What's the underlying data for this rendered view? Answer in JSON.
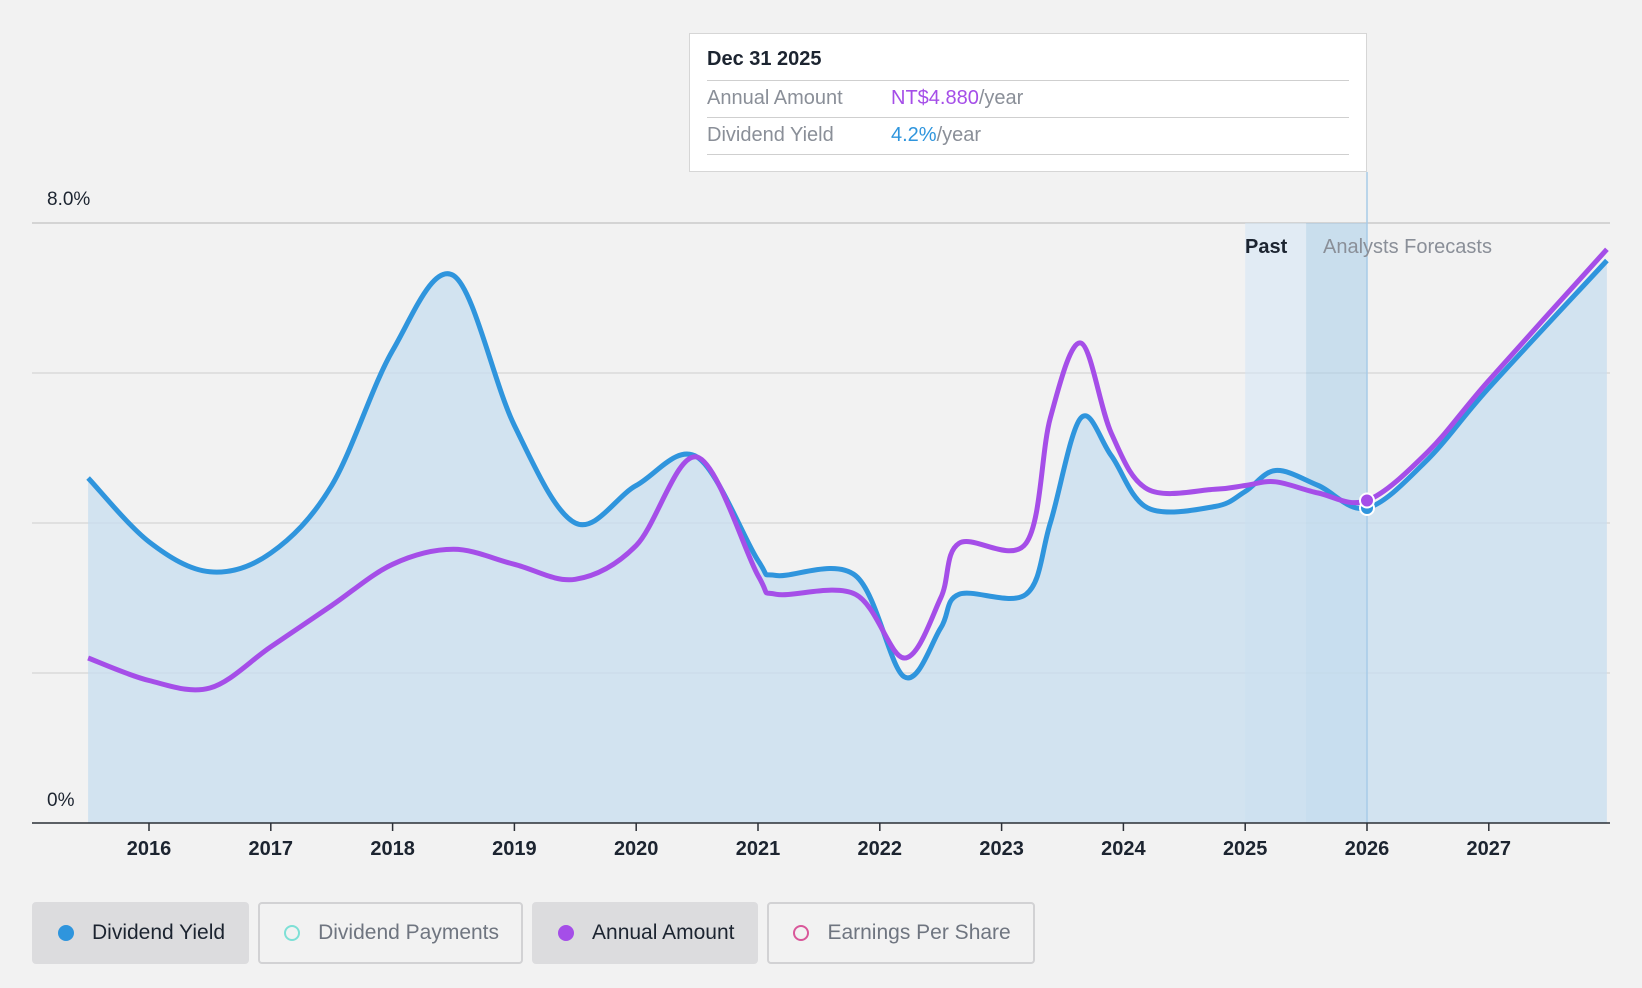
{
  "colors": {
    "dividend_yield": "#2f95dd",
    "annual_amount": "#a54ee8",
    "dividend_payments": "#7ee0d6",
    "earnings_per_share": "#d9579a",
    "area_fill": "#c7ddef",
    "background": "#f2f2f2"
  },
  "tooltip": {
    "date": "Dec 31 2025",
    "rows": [
      {
        "label": "Annual Amount",
        "value": "NT$4.880",
        "unit": "/year"
      },
      {
        "label": "Dividend Yield",
        "value": "4.2%",
        "unit": "/year"
      }
    ]
  },
  "regions": {
    "past_label": "Past",
    "forecast_label": "Analysts Forecasts"
  },
  "legend": [
    {
      "label": "Dividend Yield",
      "icon": "filled-dot-icon",
      "active": true
    },
    {
      "label": "Dividend Payments",
      "icon": "hollow-dot-icon",
      "active": false
    },
    {
      "label": "Annual Amount",
      "icon": "filled-dot-icon",
      "active": true
    },
    {
      "label": "Earnings Per Share",
      "icon": "hollow-dot-icon",
      "active": false
    }
  ],
  "chart_data": {
    "type": "line",
    "y_axis": {
      "min": 0,
      "max": 8,
      "unit": "%",
      "tick_labels": [
        "0%",
        "8.0%"
      ],
      "gridlines": [
        0,
        2,
        4,
        6,
        8
      ]
    },
    "x_axis": {
      "min": 2015.5,
      "max": 2027.97,
      "tick_labels": [
        "2016",
        "2017",
        "2018",
        "2019",
        "2020",
        "2021",
        "2022",
        "2023",
        "2024",
        "2025",
        "2026",
        "2027"
      ]
    },
    "past_region": [
      2025.0,
      2025.5
    ],
    "forecast_region": [
      2025.5,
      2026.0
    ],
    "selected_date": 2026.0,
    "grid": true,
    "series": [
      {
        "name": "Dividend Yield",
        "points": [
          [
            2015.5,
            4.6
          ],
          [
            2016.0,
            3.75
          ],
          [
            2016.5,
            3.35
          ],
          [
            2017.0,
            3.6
          ],
          [
            2017.5,
            4.5
          ],
          [
            2018.0,
            6.3
          ],
          [
            2018.5,
            7.3
          ],
          [
            2019.0,
            5.3
          ],
          [
            2019.5,
            4.0
          ],
          [
            2020.0,
            4.5
          ],
          [
            2020.5,
            4.88
          ],
          [
            2021.0,
            3.5
          ],
          [
            2021.15,
            3.3
          ],
          [
            2021.8,
            3.3
          ],
          [
            2022.2,
            1.95
          ],
          [
            2022.5,
            2.6
          ],
          [
            2022.65,
            3.05
          ],
          [
            2023.2,
            3.05
          ],
          [
            2023.4,
            4.0
          ],
          [
            2023.65,
            5.4
          ],
          [
            2023.9,
            4.9
          ],
          [
            2024.2,
            4.2
          ],
          [
            2024.75,
            4.22
          ],
          [
            2025.0,
            4.42
          ],
          [
            2025.25,
            4.7
          ],
          [
            2025.6,
            4.5
          ],
          [
            2026.0,
            4.2
          ],
          [
            2026.5,
            4.85
          ],
          [
            2027.0,
            5.8
          ],
          [
            2027.97,
            7.5
          ]
        ]
      },
      {
        "name": "Annual Amount",
        "points": [
          [
            2015.5,
            2.2
          ],
          [
            2016.0,
            1.9
          ],
          [
            2016.5,
            1.8
          ],
          [
            2017.0,
            2.35
          ],
          [
            2017.5,
            2.9
          ],
          [
            2018.0,
            3.45
          ],
          [
            2018.5,
            3.65
          ],
          [
            2019.0,
            3.45
          ],
          [
            2019.5,
            3.25
          ],
          [
            2020.0,
            3.7
          ],
          [
            2020.5,
            4.88
          ],
          [
            2021.0,
            3.3
          ],
          [
            2021.15,
            3.05
          ],
          [
            2021.8,
            3.05
          ],
          [
            2022.2,
            2.2
          ],
          [
            2022.5,
            3.0
          ],
          [
            2022.65,
            3.73
          ],
          [
            2023.2,
            3.73
          ],
          [
            2023.4,
            5.4
          ],
          [
            2023.65,
            6.4
          ],
          [
            2023.9,
            5.2
          ],
          [
            2024.2,
            4.45
          ],
          [
            2024.75,
            4.45
          ],
          [
            2025.0,
            4.5
          ],
          [
            2025.25,
            4.55
          ],
          [
            2025.6,
            4.4
          ],
          [
            2026.0,
            4.3
          ],
          [
            2026.5,
            4.95
          ],
          [
            2027.0,
            5.9
          ],
          [
            2027.97,
            7.65
          ]
        ]
      }
    ]
  }
}
